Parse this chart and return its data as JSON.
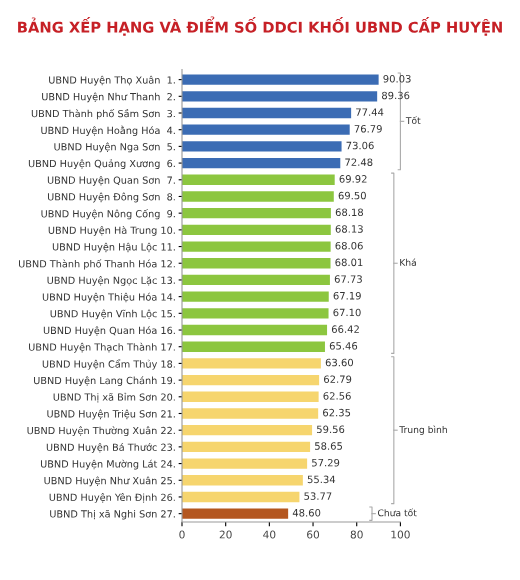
{
  "chart_data": {
    "type": "bar",
    "orientation": "horizontal",
    "title": "BẢNG XẾP HẠNG VÀ ĐIỂM SỐ DDCI KHỐI UBND CẤP HUYỆN",
    "categories": [
      "UBND Huyện Thọ Xuân  1.",
      "UBND Huyện Như Thanh  2.",
      "UBND Thành phố Sầm Sơn  3.",
      "UBND Huyện Hoằng Hóa  4.",
      "UBND Huyện Nga Sơn  5.",
      "UBND Huyện Quảng Xương  6.",
      "UBND Huyện Quan Sơn  7.",
      "UBND Huyện Đông Sơn  8.",
      "UBND Huyện Nông Cống  9.",
      "UBND Huyện Hà Trung 10.",
      "UBND Huyện Hậu Lộc 11.",
      "UBND Thành phố Thanh Hóa 12.",
      "UBND Huyện Ngọc Lặc 13.",
      "UBND Huyện Thiệu Hóa 14.",
      "UBND Huyện Vĩnh Lộc 15.",
      "UBND Huyện Quan Hóa 16.",
      "UBND Huyện Thạch Thành 17.",
      "UBND Huyện Cẩm Thủy 18.",
      "UBND Huyện Lang Chánh 19.",
      "UBND Thị xã Bỉm Sơn 20.",
      "UBND Huyện Triệu Sơn 21.",
      "UBND Huyện Thường Xuân 22.",
      "UBND Huyện Bá Thước 23.",
      "UBND Huyện Mường Lát 24.",
      "UBND Huyện Như Xuân 25.",
      "UBND Huyện Yên Định 26.",
      "UBND Thị xã Nghi Sơn 27."
    ],
    "values": [
      90.03,
      89.36,
      77.44,
      76.79,
      73.06,
      72.48,
      69.92,
      69.5,
      68.18,
      68.13,
      68.06,
      68.01,
      67.73,
      67.19,
      67.1,
      66.42,
      65.46,
      63.6,
      62.79,
      62.56,
      62.35,
      59.56,
      58.65,
      57.29,
      55.34,
      53.77,
      48.6
    ],
    "value_labels": [
      "90.03",
      "89.36",
      "77.44",
      "76.79",
      "73.06",
      "72.48",
      "69.92",
      "69.50",
      "68.18",
      "68.13",
      "68.06",
      "68.01",
      "67.73",
      "67.19",
      "67.10",
      "66.42",
      "65.46",
      "63.60",
      "62.79",
      "62.56",
      "62.35",
      "59.56",
      "58.65",
      "57.29",
      "55.34",
      "53.77",
      "48.60"
    ],
    "colors": [
      "#3b6cb4",
      "#3b6cb4",
      "#3b6cb4",
      "#3b6cb4",
      "#3b6cb4",
      "#3b6cb4",
      "#8cc63f",
      "#8cc63f",
      "#8cc63f",
      "#8cc63f",
      "#8cc63f",
      "#8cc63f",
      "#8cc63f",
      "#8cc63f",
      "#8cc63f",
      "#8cc63f",
      "#8cc63f",
      "#f6d56e",
      "#f6d56e",
      "#f6d56e",
      "#f6d56e",
      "#f6d56e",
      "#f6d56e",
      "#f6d56e",
      "#f6d56e",
      "#f6d56e",
      "#b4561f"
    ],
    "annotations": [
      "Tốt",
      "Khá",
      "Trung bình",
      "Chưa tốt"
    ],
    "xlim": [
      0,
      100
    ],
    "xticks": [
      0,
      20,
      40,
      60,
      80,
      100
    ],
    "grid": false
  }
}
